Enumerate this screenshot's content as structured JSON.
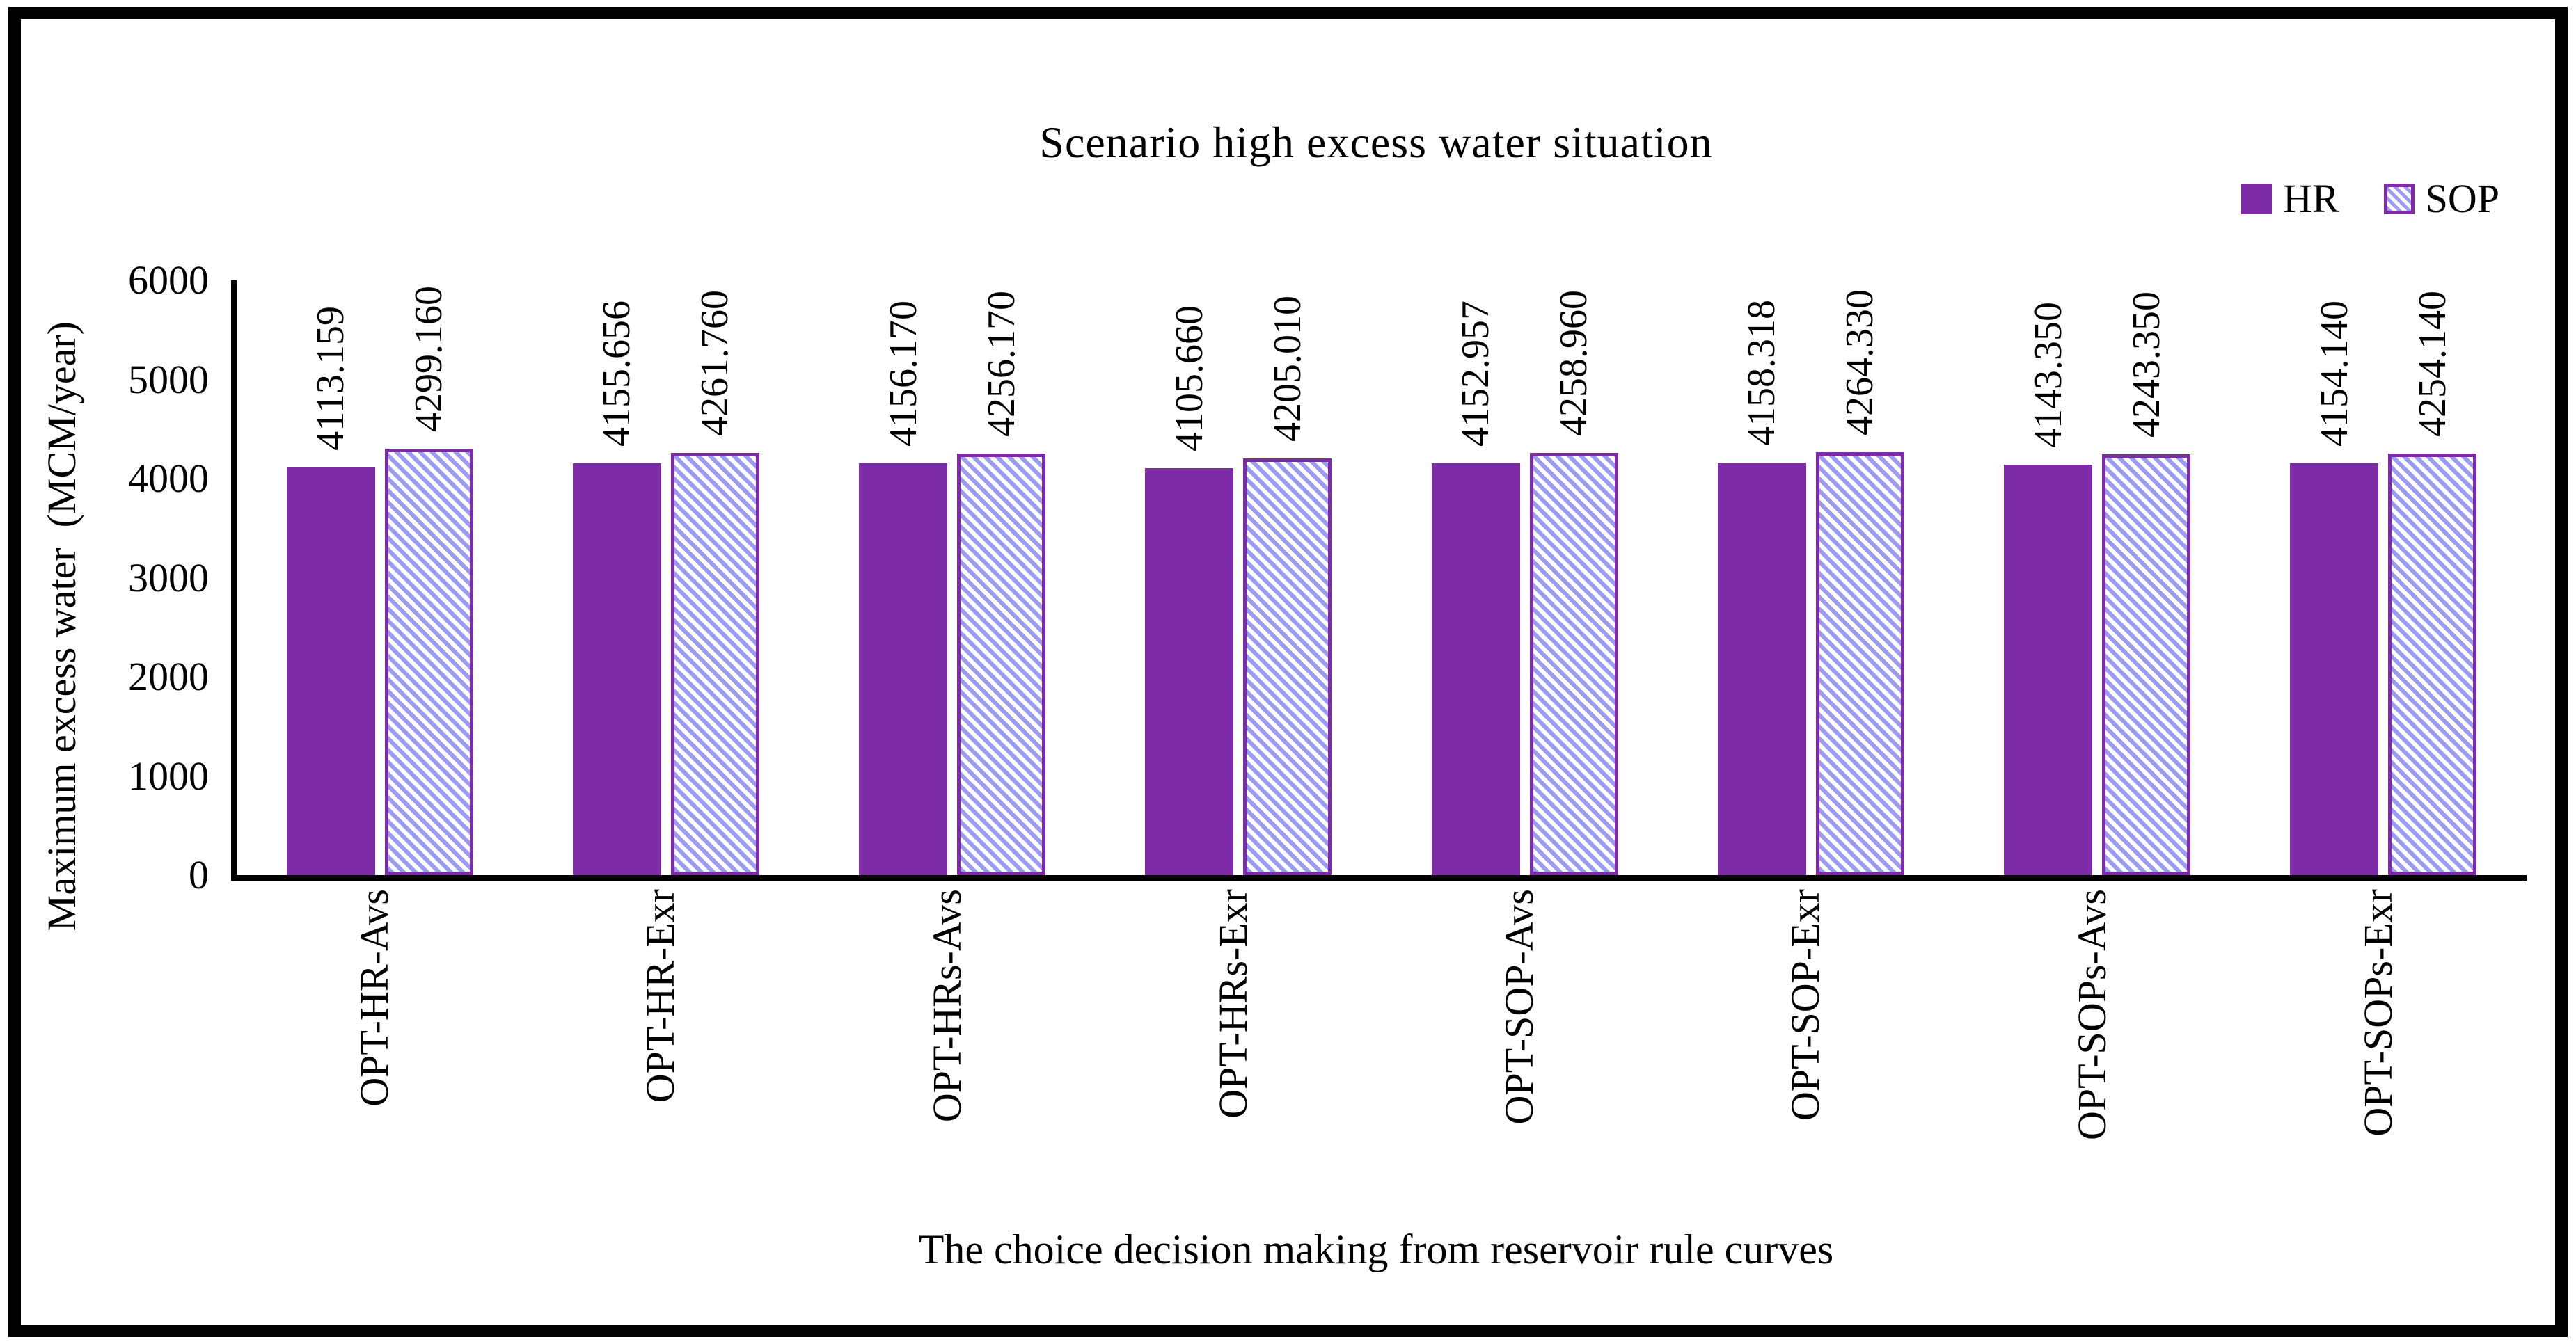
{
  "title": "Scenario high excess water situation",
  "legend": {
    "items": [
      {
        "label": "HR"
      },
      {
        "label": "SOP"
      }
    ]
  },
  "axes": {
    "y_title": "Maximum excess water  (MCM/year)",
    "x_title": "The choice decision making from reservoir rule curves"
  },
  "colors": {
    "hr_fill": "#7d2ba6",
    "sop_border": "#7d2ba6",
    "sop_stripe": "#9b9bf2",
    "sop_background": "#ffffff",
    "axis_line": "#000000"
  },
  "chart_data": {
    "type": "bar",
    "title": "Scenario high excess water situation",
    "xlabel": "The choice decision making from reservoir rule curves",
    "ylabel": "Maximum excess water  (MCM/year)",
    "categories": [
      "OPT-HR-Avs",
      "OPT-HR-Exr",
      "OPT-HRs-Avs",
      "OPT-HRs-Exr",
      "OPT-SOP-Avs",
      "OPT-SOP-Exr",
      "OPT-SOPs-Avs",
      "OPT-SOPs-Exr"
    ],
    "series": [
      {
        "name": "HR",
        "values": [
          4113.159,
          4155.656,
          4156.17,
          4105.66,
          4152.957,
          4158.318,
          4143.35,
          4154.14
        ],
        "labels": [
          "4113.159",
          "4155.656",
          "4156.170",
          "4105.660",
          "4152.957",
          "4158.318",
          "4143.350",
          "4154.140"
        ]
      },
      {
        "name": "SOP",
        "values": [
          4299.16,
          4261.76,
          4256.17,
          4205.01,
          4258.96,
          4264.33,
          4243.35,
          4254.14
        ],
        "labels": [
          "4299.160",
          "4261.760",
          "4256.170",
          "4205.010",
          "4258.960",
          "4264.330",
          "4243.350",
          "4254.140"
        ]
      }
    ],
    "ylim": [
      0,
      6000
    ],
    "yticks": [
      0,
      1000,
      2000,
      3000,
      4000,
      5000,
      6000
    ],
    "grid": false,
    "legend_position": "top-right",
    "data_labels_rotated": true
  }
}
